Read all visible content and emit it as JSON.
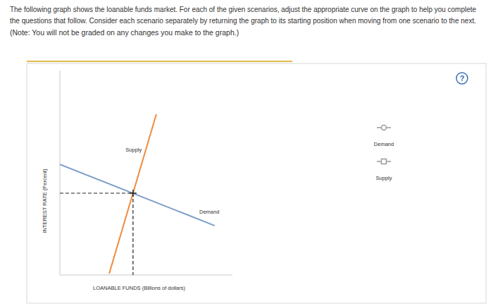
{
  "page": {
    "lines": [
      "The following graph shows the loanable funds market. For each of the given scenarios, adjust the appropriate curve on the graph to help you complete",
      "the questions that follow. Consider each scenario separately by returning the graph to its starting position when moving from one scenario to the next.",
      "(Note: You will not be graded on any changes you make to the graph.)"
    ],
    "help": "?"
  },
  "chart_data": {
    "type": "line",
    "x_label": "LOANABLE FUNDS (Billions of dollars)",
    "y_label": "INTEREST RATE (Percent)",
    "xlim": [
      0,
      100
    ],
    "ylim": [
      0,
      100
    ],
    "tick_labels": false,
    "grid": false,
    "legend": "right",
    "series": [
      {
        "name": "Supply",
        "color": "#f08a3c",
        "marker": "square",
        "x": [
          28.6,
          55.9
        ],
        "values": [
          0.7,
          78.6
        ]
      },
      {
        "name": "Demand",
        "color": "#7d9ec9",
        "marker": "circle",
        "x": [
          0,
          89.8
        ],
        "values": [
          54.1,
          24.1
        ]
      }
    ],
    "equilibrium": {
      "x": 42.4,
      "y": 40
    }
  }
}
